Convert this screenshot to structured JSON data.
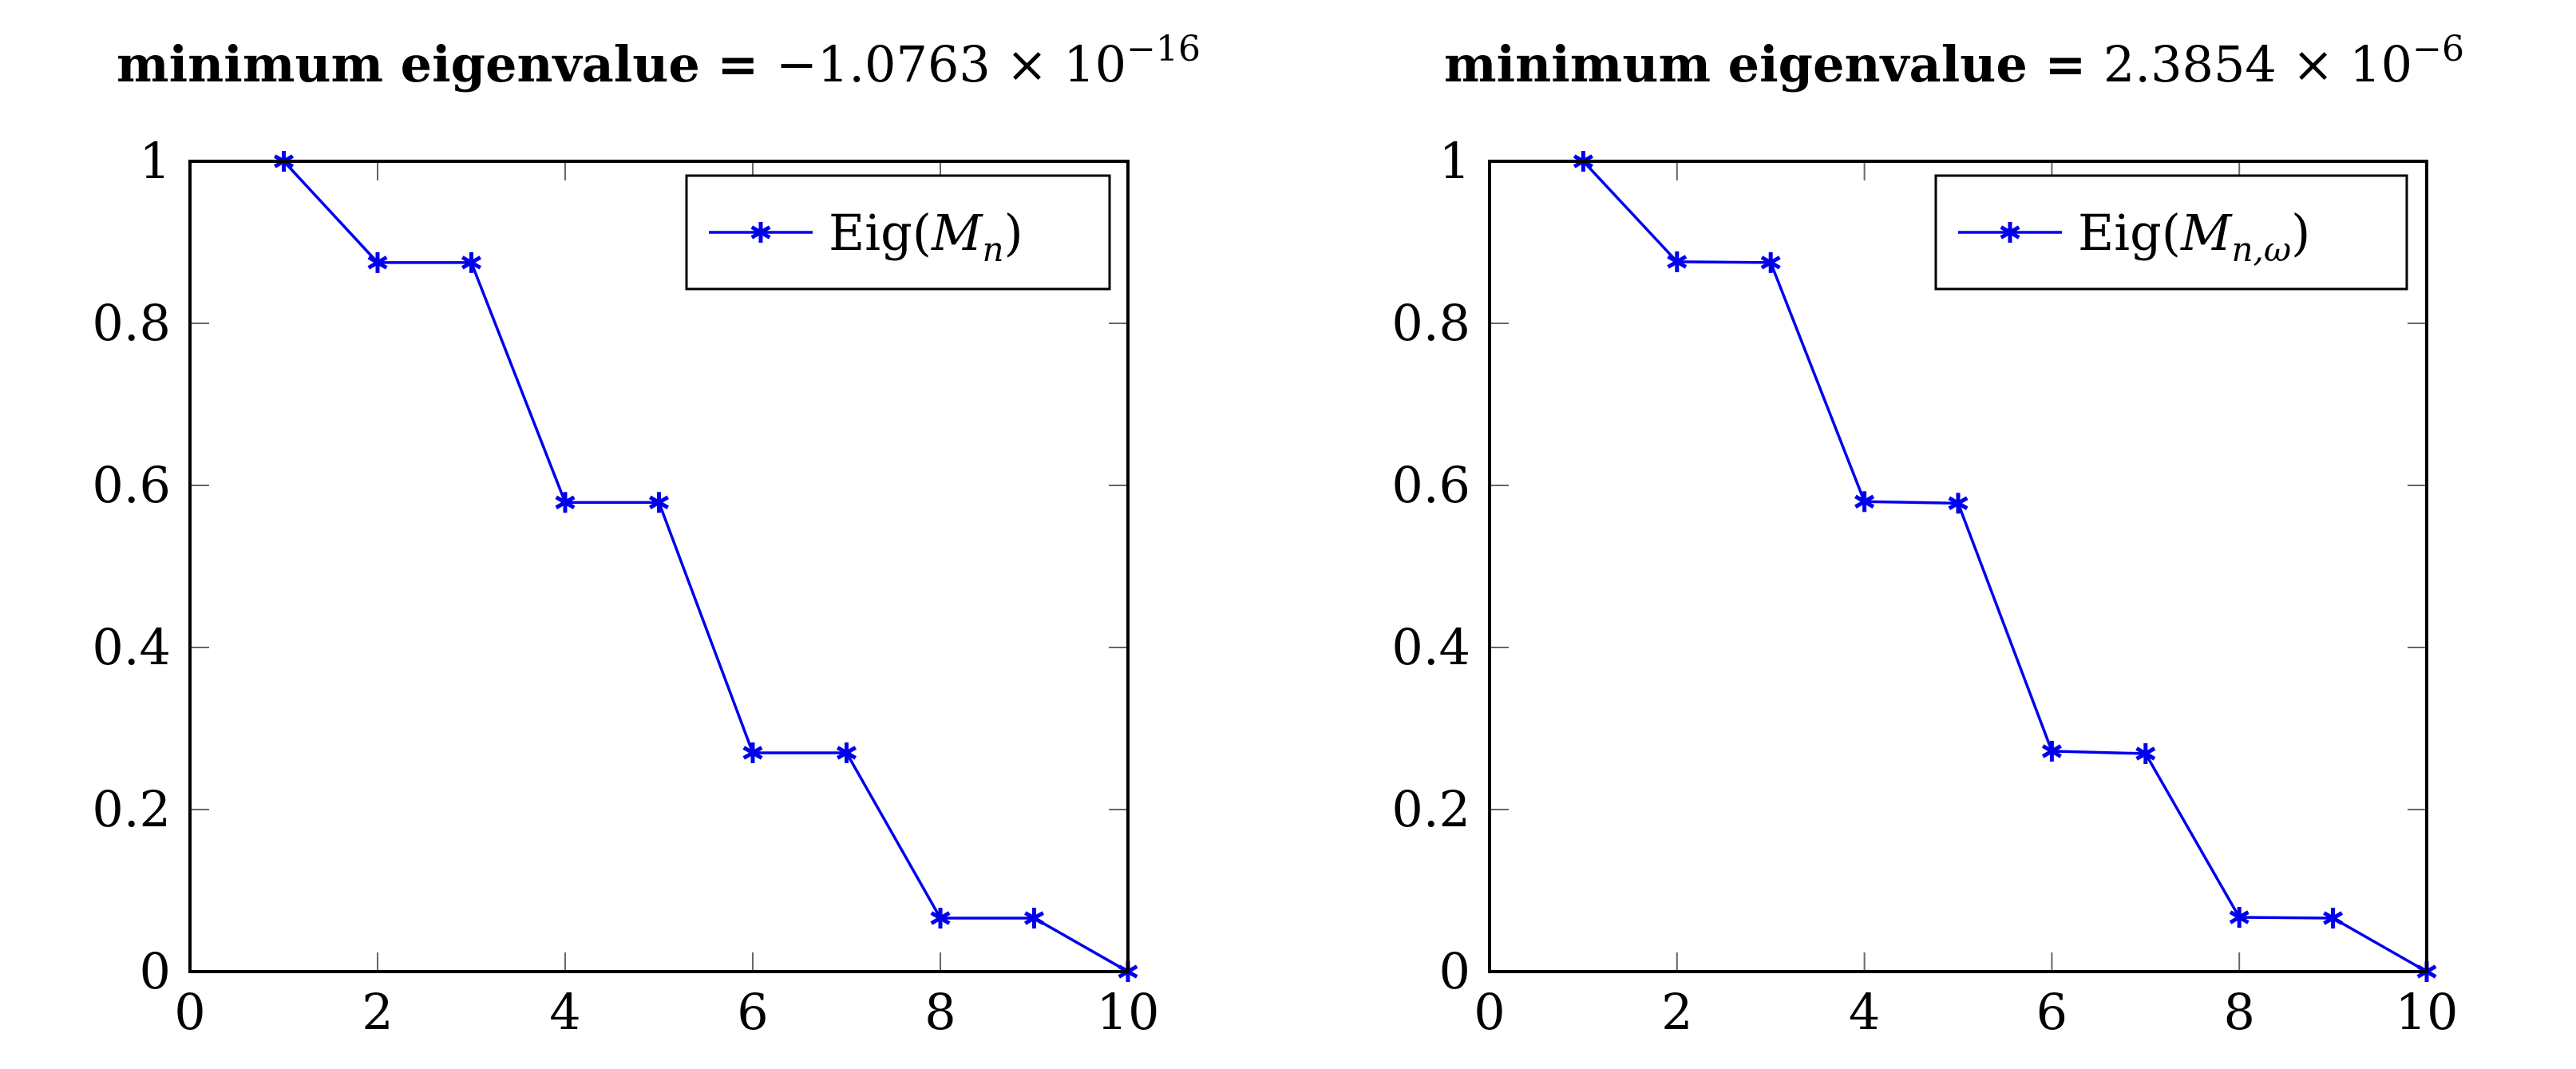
{
  "colors": {
    "series": "#0000ee",
    "axis": "#000000",
    "tick": "#666666",
    "background": "#ffffff"
  },
  "chart_data": [
    {
      "type": "line",
      "title": "minimum eigenvalue = −1.0763 × 10⁻¹⁶",
      "title_bold": "minimum eigenvalue =",
      "title_mantissa": "−1.0763 × 10",
      "title_exponent": "−16",
      "xlabel": "",
      "ylabel": "",
      "xlim": [
        0,
        10
      ],
      "ylim": [
        0,
        1
      ],
      "xticks": [
        0,
        2,
        4,
        6,
        8,
        10
      ],
      "xtick_labels": [
        "0",
        "2",
        "4",
        "6",
        "8",
        "10"
      ],
      "yticks": [
        0,
        0.2,
        0.4,
        0.6,
        0.8,
        1
      ],
      "ytick_labels": [
        "0",
        "0.2",
        "0.4",
        "0.6",
        "0.8",
        "1"
      ],
      "grid": false,
      "legend_position": "top-right",
      "legend_label_main": "Eig(M",
      "legend_label_sub": "n",
      "legend_label_close": ")",
      "series": [
        {
          "name": "Eig(M_n)",
          "marker": "asterisk",
          "x": [
            1,
            2,
            3,
            4,
            5,
            6,
            7,
            8,
            9,
            10
          ],
          "y": [
            1.0,
            0.875,
            0.875,
            0.579,
            0.579,
            0.27,
            0.27,
            0.066,
            0.066,
            0.0
          ]
        }
      ]
    },
    {
      "type": "line",
      "title": "minimum eigenvalue = 2.3854 × 10⁻⁶",
      "title_bold": "minimum eigenvalue =",
      "title_mantissa": "2.3854 × 10",
      "title_exponent": "−6",
      "xlabel": "",
      "ylabel": "",
      "xlim": [
        0,
        10
      ],
      "ylim": [
        0,
        1
      ],
      "xticks": [
        0,
        2,
        4,
        6,
        8,
        10
      ],
      "xtick_labels": [
        "0",
        "2",
        "4",
        "6",
        "8",
        "10"
      ],
      "yticks": [
        0,
        0.2,
        0.4,
        0.6,
        0.8,
        1
      ],
      "ytick_labels": [
        "0",
        "0.2",
        "0.4",
        "0.6",
        "0.8",
        "1"
      ],
      "grid": false,
      "legend_position": "top-right",
      "legend_label_main": "Eig(M",
      "legend_label_sub": "n,ω",
      "legend_label_close": ")",
      "series": [
        {
          "name": "Eig(M_{n,ω})",
          "marker": "asterisk",
          "x": [
            1,
            2,
            3,
            4,
            5,
            6,
            7,
            8,
            9,
            10
          ],
          "y": [
            1.0,
            0.876,
            0.875,
            0.58,
            0.578,
            0.272,
            0.269,
            0.067,
            0.066,
            0.0
          ]
        }
      ]
    }
  ]
}
